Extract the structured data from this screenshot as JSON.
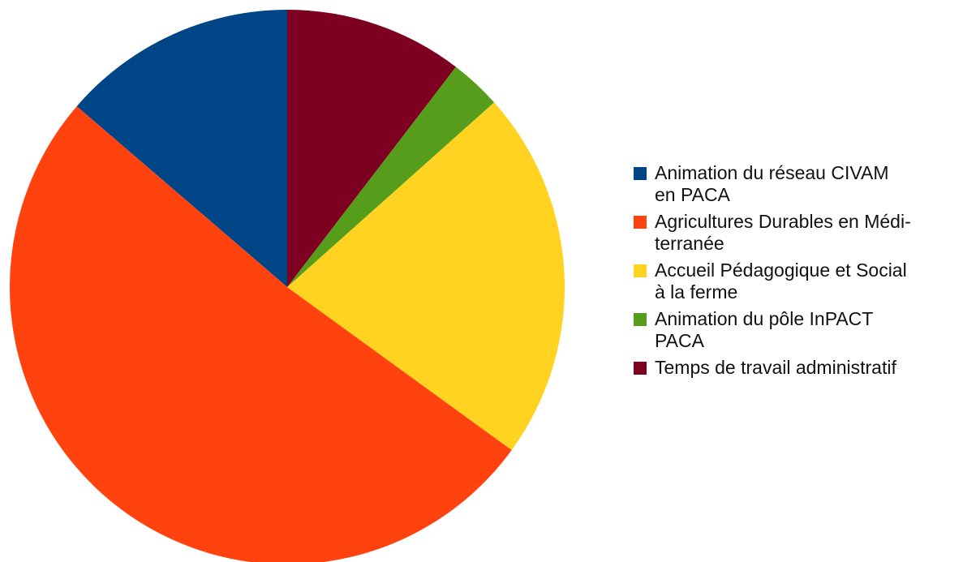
{
  "chart_data": {
    "type": "pie",
    "title": "",
    "legend_position": "right",
    "start_angle_deg": 0,
    "direction": "counterclockwise",
    "slices": [
      {
        "label": "Animation du réseau CIVAM en PACA",
        "label_lines": [
          "Animation du réseau CIVAM",
          "en PACA"
        ],
        "value": 13.7,
        "color": "#004586"
      },
      {
        "label": "Agricultures Durables en Méditerranée",
        "label_lines": [
          "Agricultures Durables en Médi-",
          "terranée"
        ],
        "value": 51.3,
        "color": "#ff420e"
      },
      {
        "label": "Accueil Pédagogique et Social à la ferme",
        "label_lines": [
          "Accueil Pédagogique et Social",
          "à la ferme"
        ],
        "value": 21.6,
        "color": "#ffd320"
      },
      {
        "label": "Animation du pôle InPACT PACA",
        "label_lines": [
          "Animation du pôle InPACT",
          "PACA"
        ],
        "value": 3.0,
        "color": "#579d1c"
      },
      {
        "label": "Temps de travail administratif",
        "label_lines": [
          "Temps de travail administratif"
        ],
        "value": 10.4,
        "color": "#7e0021"
      }
    ]
  }
}
